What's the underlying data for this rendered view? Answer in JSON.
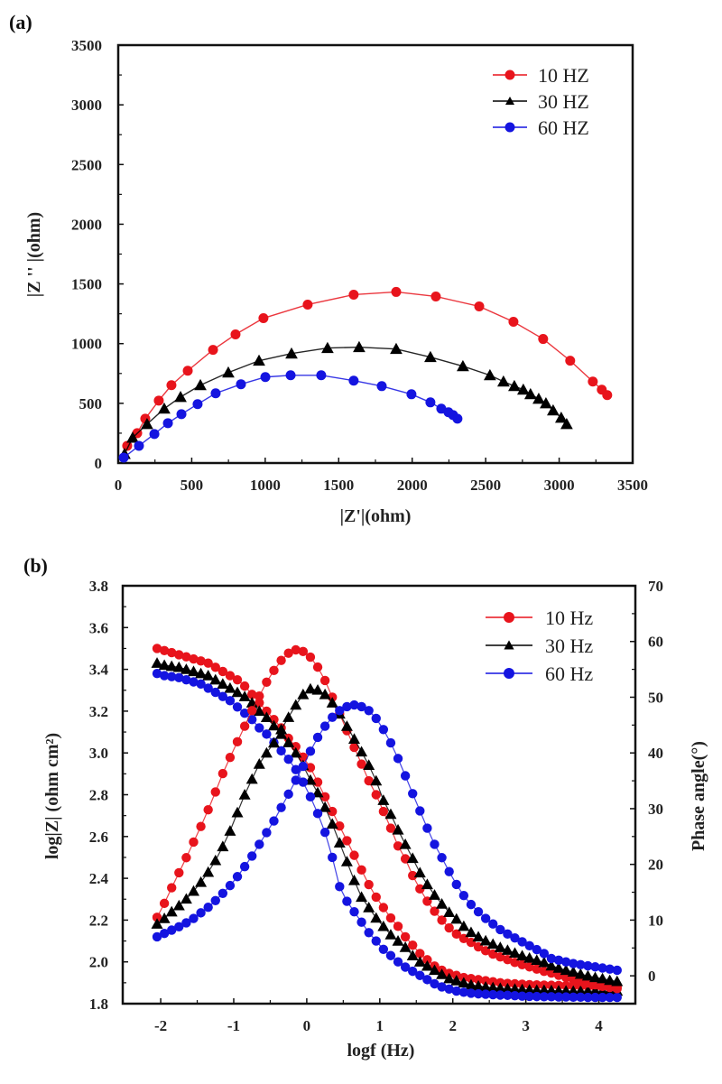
{
  "figure": {
    "panel_a_label": "(a)",
    "panel_b_label": "(b)"
  },
  "chart_data": [
    {
      "type": "line",
      "subtype": "nyquist",
      "title": "",
      "panel": "(a)",
      "xlabel": "|Z'|(ohm)",
      "ylabel": "|Z '' |(ohm)",
      "xlim": [
        0,
        3500
      ],
      "ylim": [
        0,
        3500
      ],
      "xticks": [
        "0",
        "500",
        "1000",
        "1500",
        "2000",
        "2500",
        "3000",
        "3500"
      ],
      "yticks": [
        "0",
        "500",
        "1000",
        "1500",
        "2000",
        "2500",
        "3000",
        "3500"
      ],
      "xtick_values": [
        0,
        500,
        1000,
        1500,
        2000,
        2500,
        3000,
        3500
      ],
      "ytick_values": [
        0,
        500,
        1000,
        1500,
        2000,
        2500,
        3000,
        3500
      ],
      "grid": false,
      "legend_position": "top-right",
      "series": [
        {
          "name": "10 HZ",
          "color": "#e8141c",
          "marker": "circle",
          "x": [
            61,
            129,
            184,
            276,
            362,
            473,
            645,
            798,
            988,
            1289,
            1602,
            1891,
            2161,
            2456,
            2689,
            2891,
            3075,
            3229,
            3290,
            3327
          ],
          "y": [
            144,
            250,
            371,
            523,
            652,
            773,
            948,
            1077,
            1213,
            1327,
            1410,
            1433,
            1395,
            1312,
            1183,
            1039,
            857,
            682,
            614,
            569
          ]
        },
        {
          "name": "30 HZ",
          "color": "#000000",
          "marker": "triangle",
          "x": [
            43,
            98,
            196,
            313,
            424,
            559,
            749,
            958,
            1179,
            1424,
            1639,
            1891,
            2124,
            2345,
            2529,
            2621,
            2695,
            2756,
            2805,
            2861,
            2910,
            2959,
            3014,
            3051
          ],
          "y": [
            76,
            212,
            326,
            455,
            553,
            652,
            758,
            857,
            917,
            963,
            970,
            955,
            887,
            811,
            735,
            682,
            644,
            614,
            576,
            538,
            500,
            440,
            379,
            326
          ]
        },
        {
          "name": "60 HZ",
          "color": "#1414e0",
          "marker": "circle",
          "x": [
            37,
            141,
            246,
            338,
            430,
            540,
            663,
            835,
            1001,
            1173,
            1381,
            1602,
            1793,
            1995,
            2124,
            2198,
            2247,
            2278,
            2308
          ],
          "y": [
            45,
            144,
            243,
            334,
            409,
            493,
            584,
            660,
            720,
            735,
            735,
            690,
            644,
            576,
            508,
            455,
            425,
            402,
            371
          ]
        }
      ]
    },
    {
      "type": "line",
      "subtype": "bode",
      "title": "",
      "panel": "(b)",
      "xlabel": "logf (Hz)",
      "ylabel": "log|Z| (ohm cm²)",
      "ylabel_right": "Phase angle(°)",
      "xlim": [
        -2.52,
        4.5
      ],
      "ylim": [
        1.8,
        3.8
      ],
      "ylim_right": [
        -5,
        70
      ],
      "xticks": [
        "-2",
        "-1",
        "0",
        "1",
        "2",
        "3",
        "4"
      ],
      "xtick_values": [
        -2,
        -1,
        0,
        1,
        2,
        3,
        4
      ],
      "yticks": [
        "1.8",
        "2.0",
        "2.2",
        "2.4",
        "2.6",
        "2.8",
        "3.0",
        "3.2",
        "3.4",
        "3.6",
        "3.8"
      ],
      "ytick_values": [
        1.8,
        2.0,
        2.2,
        2.4,
        2.6,
        2.8,
        3.0,
        3.2,
        3.4,
        3.6,
        3.8
      ],
      "yticks_right": [
        "0",
        "10",
        "20",
        "30",
        "40",
        "50",
        "60",
        "70"
      ],
      "ytick_values_right": [
        0,
        10,
        20,
        30,
        40,
        50,
        60,
        70
      ],
      "grid": false,
      "legend_position": "top-right",
      "x": [
        -2.05,
        -1.95,
        -1.85,
        -1.75,
        -1.65,
        -1.55,
        -1.45,
        -1.35,
        -1.25,
        -1.15,
        -1.05,
        -0.95,
        -0.85,
        -0.75,
        -0.65,
        -0.55,
        -0.45,
        -0.35,
        -0.25,
        -0.15,
        -0.05,
        0.05,
        0.15,
        0.25,
        0.35,
        0.45,
        0.55,
        0.65,
        0.75,
        0.85,
        0.95,
        1.05,
        1.15,
        1.25,
        1.35,
        1.45,
        1.55,
        1.65,
        1.75,
        1.85,
        1.95,
        2.05,
        2.15,
        2.25,
        2.35,
        2.45,
        2.55,
        2.65,
        2.75,
        2.85,
        2.95,
        3.05,
        3.15,
        3.25,
        3.35,
        3.45,
        3.55,
        3.65,
        3.75,
        3.85,
        3.95,
        4.05,
        4.15,
        4.25
      ],
      "series": [
        {
          "name": "10 Hz",
          "quantity": "log|Z|",
          "axis": "left",
          "color": "#e8141c",
          "marker": "circle",
          "values": [
            3.5,
            3.49,
            3.48,
            3.47,
            3.46,
            3.45,
            3.44,
            3.43,
            3.41,
            3.39,
            3.37,
            3.35,
            3.32,
            3.28,
            3.24,
            3.2,
            3.16,
            3.12,
            3.07,
            3.03,
            2.98,
            2.93,
            2.86,
            2.79,
            2.72,
            2.65,
            2.58,
            2.51,
            2.44,
            2.37,
            2.31,
            2.26,
            2.21,
            2.17,
            2.12,
            2.08,
            2.04,
            2.01,
            1.98,
            1.96,
            1.945,
            1.935,
            1.925,
            1.92,
            1.915,
            1.91,
            1.905,
            1.9,
            1.897,
            1.895,
            1.893,
            1.891,
            1.89,
            1.889,
            1.888,
            1.887,
            1.886,
            1.885,
            1.884,
            1.883,
            1.882,
            1.881,
            1.88,
            1.88
          ]
        },
        {
          "name": "30 Hz",
          "quantity": "log|Z|",
          "axis": "left",
          "color": "#000000",
          "marker": "triangle",
          "values": [
            3.43,
            3.42,
            3.415,
            3.41,
            3.4,
            3.39,
            3.38,
            3.37,
            3.35,
            3.33,
            3.31,
            3.29,
            3.27,
            3.24,
            3.2,
            3.17,
            3.13,
            3.09,
            3.05,
            3.0,
            2.94,
            2.87,
            2.81,
            2.74,
            2.66,
            2.57,
            2.48,
            2.39,
            2.31,
            2.26,
            2.21,
            2.17,
            2.13,
            2.1,
            2.07,
            2.03,
            2.0,
            1.98,
            1.96,
            1.94,
            1.92,
            1.91,
            1.9,
            1.89,
            1.885,
            1.88,
            1.877,
            1.874,
            1.872,
            1.87,
            1.868,
            1.866,
            1.865,
            1.864,
            1.863,
            1.862,
            1.861,
            1.86,
            1.86,
            1.86,
            1.86,
            1.86,
            1.86,
            1.86
          ]
        },
        {
          "name": "60 Hz",
          "quantity": "log|Z|",
          "axis": "left",
          "color": "#1414e0",
          "marker": "circle",
          "values": [
            3.38,
            3.37,
            3.365,
            3.36,
            3.35,
            3.34,
            3.33,
            3.31,
            3.29,
            3.27,
            3.25,
            3.22,
            3.19,
            3.16,
            3.12,
            3.09,
            3.05,
            3.01,
            2.97,
            2.92,
            2.86,
            2.79,
            2.71,
            2.62,
            2.5,
            2.36,
            2.29,
            2.24,
            2.19,
            2.14,
            2.1,
            2.06,
            2.03,
            2.0,
            1.975,
            1.955,
            1.935,
            1.915,
            1.895,
            1.88,
            1.87,
            1.86,
            1.855,
            1.85,
            1.847,
            1.845,
            1.843,
            1.841,
            1.84,
            1.838,
            1.836,
            1.835,
            1.834,
            1.833,
            1.833,
            1.832,
            1.832,
            1.831,
            1.831,
            1.83,
            1.83,
            1.83,
            1.83,
            1.83
          ]
        },
        {
          "name": "10 Hz",
          "quantity": "phase",
          "axis": "right",
          "color": "#e8141c",
          "marker": "circle",
          "values": [
            10.5,
            13.0,
            15.8,
            18.5,
            21.2,
            24.0,
            26.8,
            29.8,
            33.0,
            36.3,
            39.2,
            42.0,
            44.8,
            47.6,
            50.2,
            52.7,
            54.8,
            56.6,
            57.9,
            58.5,
            58.2,
            57.2,
            55.4,
            53.0,
            50.0,
            47.0,
            44.0,
            41.0,
            38.0,
            35.0,
            32.5,
            29.5,
            26.5,
            23.3,
            21.0,
            18.0,
            15.6,
            13.4,
            11.6,
            10.0,
            8.6,
            7.5,
            6.7,
            6.0,
            5.2,
            4.5,
            3.9,
            3.4,
            2.9,
            2.4,
            2.0,
            1.6,
            1.2,
            0.8,
            0.5,
            0.1,
            -0.3,
            -0.7,
            -1.0,
            -1.3,
            -1.6,
            -1.9,
            -2.1,
            -2.3
          ]
        },
        {
          "name": "30 Hz",
          "quantity": "phase",
          "axis": "right",
          "color": "#000000",
          "marker": "triangle",
          "values": [
            9.3,
            10.3,
            11.5,
            12.6,
            13.8,
            15.2,
            16.8,
            18.6,
            20.7,
            23.2,
            26.0,
            29.3,
            32.5,
            35.3,
            38.0,
            40.0,
            41.8,
            44.2,
            46.4,
            48.6,
            50.5,
            51.5,
            51.3,
            50.5,
            49.0,
            47.0,
            44.8,
            42.5,
            40.2,
            37.8,
            35.0,
            31.5,
            29.0,
            26.2,
            23.6,
            21.1,
            18.5,
            16.4,
            14.5,
            12.9,
            11.4,
            10.2,
            8.9,
            7.8,
            7.0,
            6.3,
            5.7,
            5.1,
            4.6,
            4.1,
            3.6,
            3.2,
            2.8,
            2.4,
            1.8,
            1.4,
            1.0,
            0.7,
            0.3,
            0.0,
            -0.3,
            -0.5,
            -0.8,
            -1.0
          ]
        },
        {
          "name": "60 Hz",
          "quantity": "phase",
          "axis": "right",
          "color": "#1414e0",
          "marker": "circle",
          "values": [
            7.0,
            7.6,
            8.2,
            8.8,
            9.5,
            10.3,
            11.3,
            12.3,
            13.5,
            14.8,
            16.2,
            17.8,
            19.6,
            21.5,
            23.6,
            25.7,
            27.8,
            30.2,
            32.6,
            35.1,
            37.6,
            40.3,
            42.8,
            44.8,
            46.4,
            47.6,
            48.3,
            48.6,
            48.3,
            47.6,
            46.2,
            44.2,
            41.8,
            39.0,
            35.9,
            32.7,
            29.6,
            26.5,
            23.6,
            21.2,
            18.7,
            16.4,
            14.4,
            12.8,
            11.5,
            10.3,
            9.3,
            8.3,
            7.5,
            6.8,
            6.1,
            5.4,
            4.7,
            4.0,
            3.1,
            2.8,
            2.5,
            2.2,
            2.0,
            1.8,
            1.6,
            1.4,
            1.2,
            1.0
          ]
        }
      ],
      "legend": [
        "10 Hz",
        "30 Hz",
        "60 Hz"
      ]
    }
  ]
}
